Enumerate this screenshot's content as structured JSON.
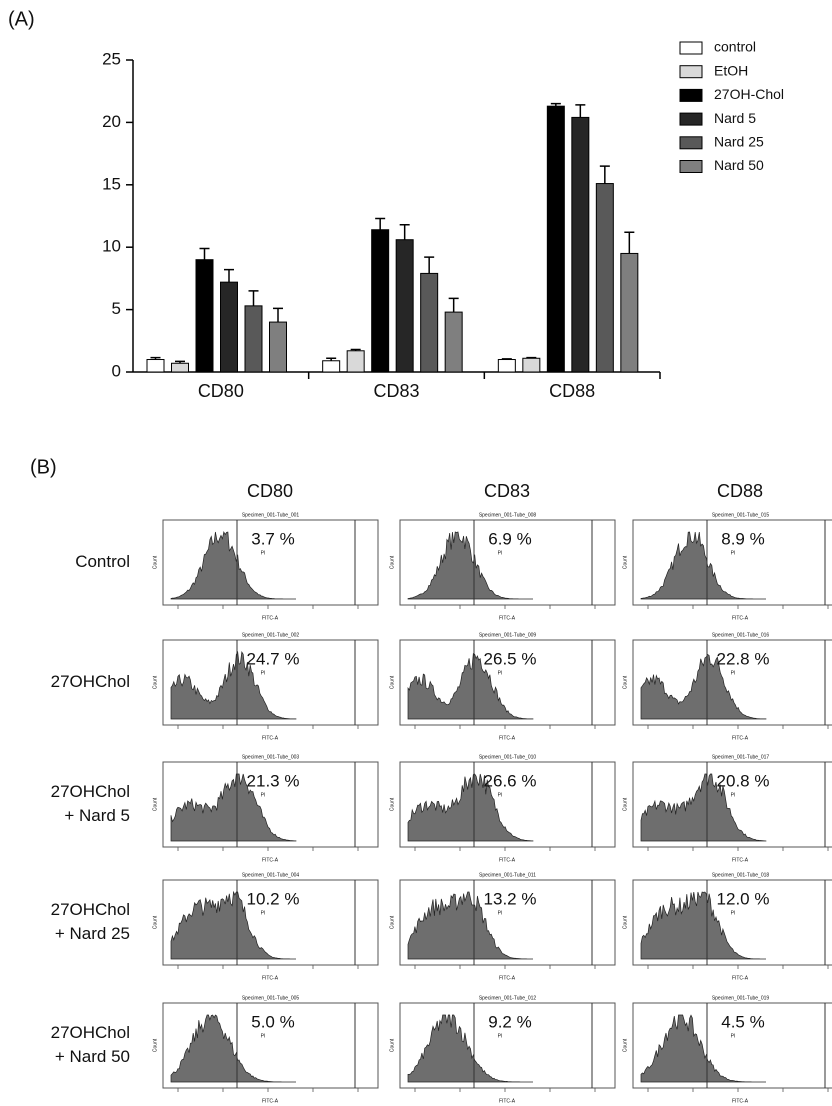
{
  "chart_data": {
    "type": "bar",
    "panel_label": "(A)",
    "categories": [
      "CD80",
      "CD83",
      "CD88"
    ],
    "series": [
      {
        "name": "control",
        "color": "#ffffff",
        "values": [
          1.0,
          0.9,
          1.0
        ],
        "errors": [
          0.15,
          0.2,
          0.05
        ]
      },
      {
        "name": "EtOH",
        "color": "#d9d9d9",
        "values": [
          0.7,
          1.7,
          1.1
        ],
        "errors": [
          0.15,
          0.1,
          0.05
        ]
      },
      {
        "name": "27OH-Chol",
        "color": "#000000",
        "values": [
          9.0,
          11.4,
          21.3
        ],
        "errors": [
          0.9,
          0.9,
          0.2
        ]
      },
      {
        "name": "Nard 5",
        "color": "#262626",
        "values": [
          7.2,
          10.6,
          20.4
        ],
        "errors": [
          1.0,
          1.2,
          1.0
        ]
      },
      {
        "name": "Nard 25",
        "color": "#595959",
        "values": [
          5.3,
          7.9,
          15.1
        ],
        "errors": [
          1.2,
          1.3,
          1.4
        ]
      },
      {
        "name": "Nard 50",
        "color": "#7f7f7f",
        "values": [
          4.0,
          4.8,
          9.5
        ],
        "errors": [
          1.1,
          1.1,
          1.7
        ]
      }
    ],
    "ylim": [
      0,
      25
    ],
    "yticks": [
      0,
      5,
      10,
      15,
      20,
      25
    ],
    "legend": "upper right"
  },
  "flow_panel": {
    "panel_label": "(B)",
    "columns": [
      "CD80",
      "CD83",
      "CD88"
    ],
    "rows": [
      [
        "Control"
      ],
      [
        "27OHChol"
      ],
      [
        "27OHChol",
        "+ Nard 5"
      ],
      [
        "27OHChol",
        "+ Nard 25"
      ],
      [
        "27OHChol",
        "+ Nard 50"
      ]
    ],
    "percentages": [
      [
        "3.7 %",
        "6.9 %",
        "8.9 %"
      ],
      [
        "24.7 %",
        "26.5 %",
        "22.8 %"
      ],
      [
        "21.3 %",
        "26.6 %",
        "20.8 %"
      ],
      [
        "10.2 %",
        "13.2 %",
        "12.0 %"
      ],
      [
        "5.0 %",
        "9.2 %",
        "4.5 %"
      ]
    ],
    "specimens": [
      [
        "Specimen_001-Tube_001",
        "Specimen_001-Tube_008",
        "Specimen_001-Tube_015"
      ],
      [
        "Specimen_001-Tube_002",
        "Specimen_001-Tube_009",
        "Specimen_001-Tube_016"
      ],
      [
        "Specimen_001-Tube_003",
        "Specimen_001-Tube_010",
        "Specimen_001-Tube_017"
      ],
      [
        "Specimen_001-Tube_004",
        "Specimen_001-Tube_011",
        "Specimen_001-Tube_018"
      ],
      [
        "Specimen_001-Tube_005",
        "Specimen_001-Tube_012",
        "Specimen_001-Tube_019"
      ]
    ],
    "x_axis_label": "FITC-A",
    "y_axis_label": "Count",
    "gate_label": "PI"
  }
}
